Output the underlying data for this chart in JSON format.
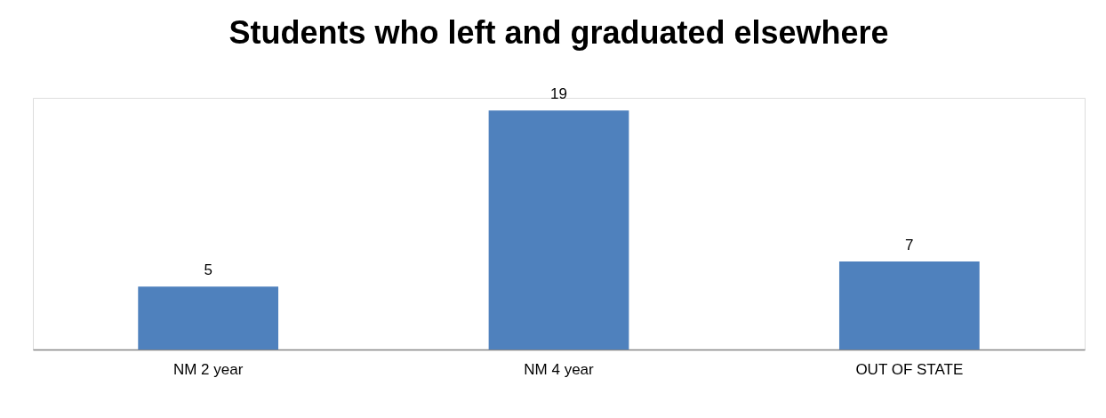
{
  "chart_data": {
    "type": "bar",
    "title": "Students who left and graduated elsewhere",
    "categories": [
      "NM 2 year",
      "NM 4 year",
      "OUT OF STATE"
    ],
    "series": [
      {
        "color": "#4f81bd",
        "values": [
          5,
          19,
          7
        ]
      }
    ],
    "data_labels": true
  }
}
